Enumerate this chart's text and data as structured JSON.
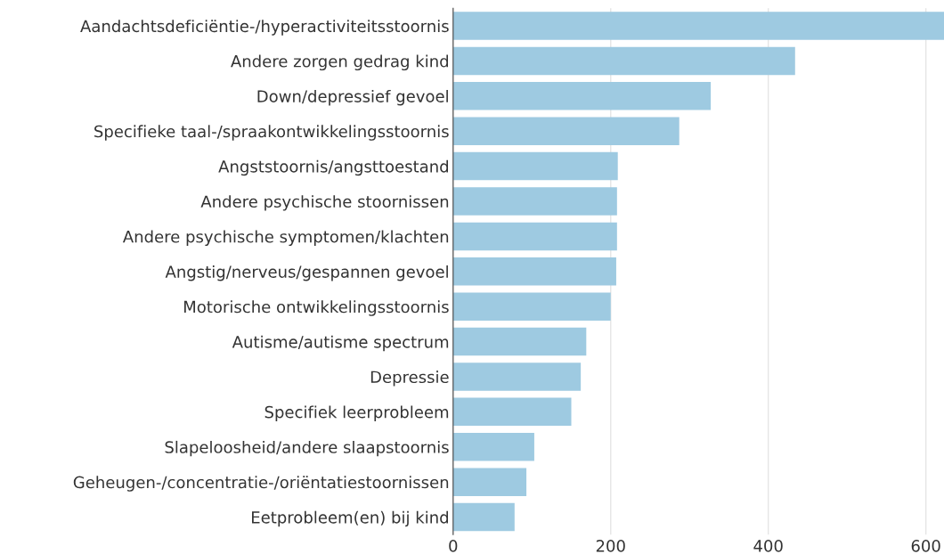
{
  "chart_data": {
    "type": "bar",
    "orientation": "horizontal",
    "categories": [
      "Aandachtsdeficiëntie-/hyperactiviteitsstoornis",
      "Andere zorgen gedrag kind",
      "Down/depressief gevoel",
      "Specifieke taal-/spraakontwikkelingsstoornis",
      "Angststoornis/angsttoestand",
      "Andere psychische stoornissen",
      "Andere psychische symptomen/klachten",
      "Angstig/nerveus/gespannen gevoel",
      "Motorische ontwikkelingsstoornis",
      "Autisme/autisme spectrum",
      "Depressie",
      "Specifiek leerprobleem",
      "Slapeloosheid/andere slaapstoornis",
      "Geheugen-/concentratie-/oriëntatiestoornissen",
      "Eetprobleem(en) bij kind"
    ],
    "values": [
      623,
      434,
      327,
      287,
      209,
      208,
      208,
      207,
      200,
      169,
      162,
      150,
      103,
      93,
      78
    ],
    "color": "#9ecae1",
    "xlim": [
      0,
      623
    ],
    "xticks": [
      0,
      200,
      400,
      600
    ],
    "grid": "x"
  }
}
